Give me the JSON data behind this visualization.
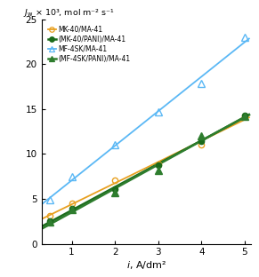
{
  "xlabel": "i, A/dm²",
  "xlim": [
    0.3,
    5.15
  ],
  "ylim": [
    0,
    25
  ],
  "yticks": [
    0,
    5,
    10,
    15,
    20,
    25
  ],
  "xticks": [
    1,
    2,
    3,
    4,
    5
  ],
  "series": [
    {
      "label": "MK-40/MA-41",
      "x": [
        0.5,
        1.0,
        2.0,
        3.0,
        4.0,
        5.0
      ],
      "y": [
        3.1,
        4.5,
        7.1,
        8.9,
        11.0,
        14.2
      ],
      "color": "#E8A020",
      "marker": "o",
      "fillstyle": "none",
      "linewidth": 1.3,
      "markersize": 4.5
    },
    {
      "label": "(MK-40/PANI)/MA-41",
      "x": [
        0.5,
        1.0,
        2.0,
        3.0,
        4.0,
        5.0
      ],
      "y": [
        2.5,
        3.9,
        6.1,
        8.8,
        11.4,
        14.3
      ],
      "color": "#1B6B1B",
      "marker": "o",
      "fillstyle": "full",
      "linewidth": 1.8,
      "markersize": 4.5
    },
    {
      "label": "MF-4SK/MA-41",
      "x": [
        0.5,
        1.0,
        2.0,
        3.0,
        4.0,
        5.0
      ],
      "y": [
        4.9,
        7.5,
        11.0,
        14.7,
        17.9,
        23.0
      ],
      "color": "#5BB8F5",
      "marker": "^",
      "fillstyle": "none",
      "linewidth": 1.3,
      "markersize": 5.5
    },
    {
      "label": "(MF-4SK/PANI)/MA-41",
      "x": [
        0.5,
        1.0,
        2.0,
        3.0,
        4.0,
        5.0
      ],
      "y": [
        2.4,
        3.8,
        5.7,
        8.2,
        12.0,
        14.2
      ],
      "color": "#2E7D2E",
      "marker": "^",
      "fillstyle": "full",
      "linewidth": 1.8,
      "markersize": 5.5
    }
  ],
  "background_color": "#ffffff"
}
